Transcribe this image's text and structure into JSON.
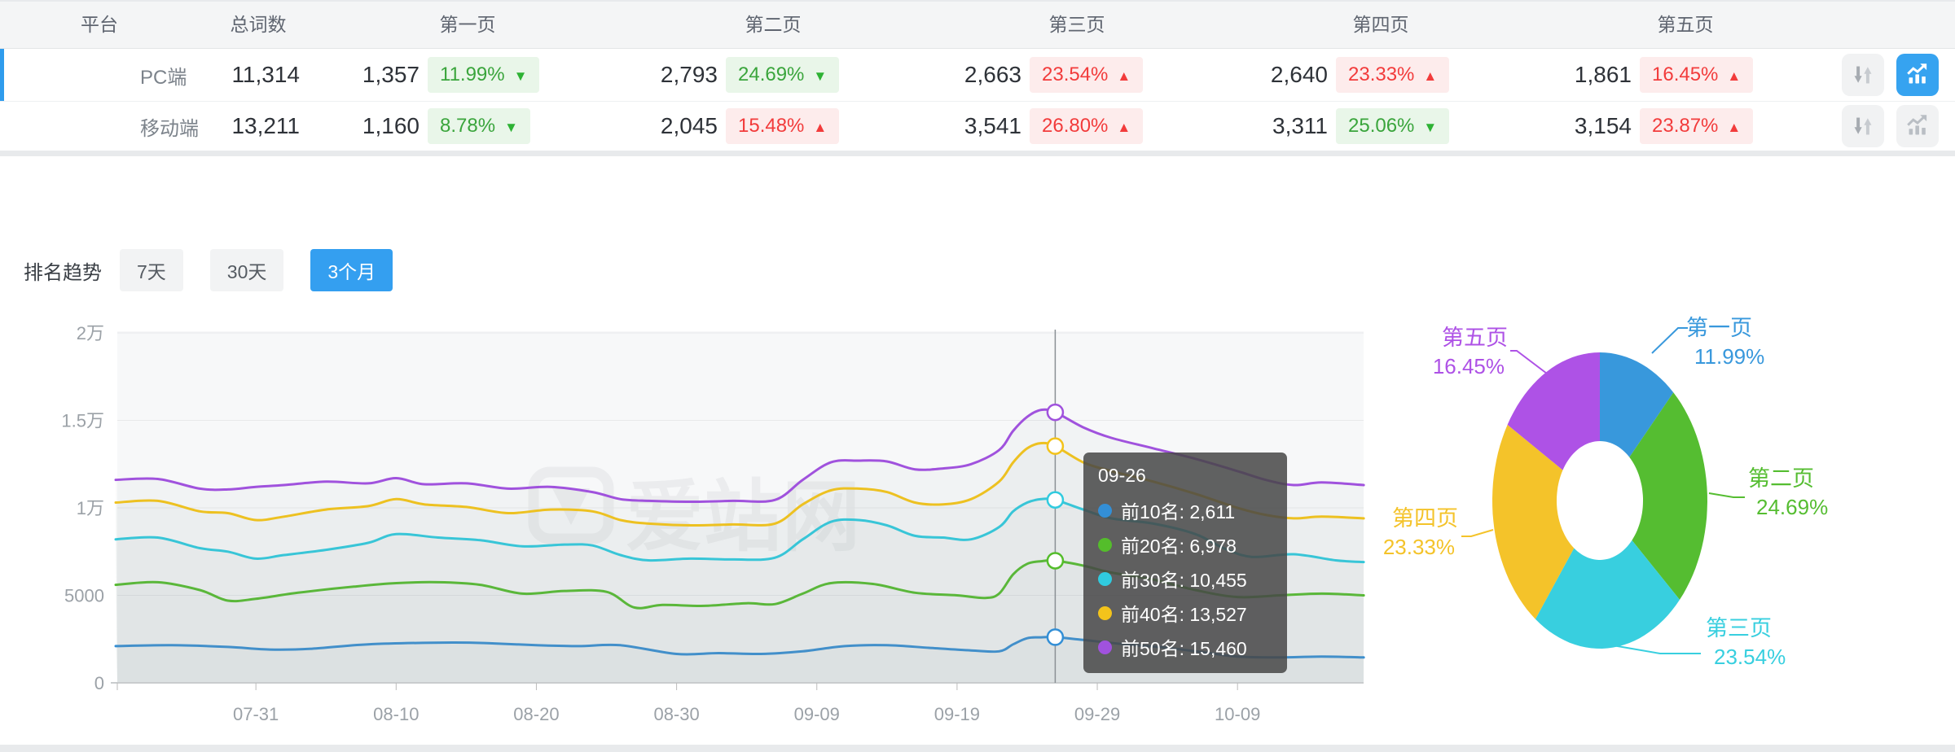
{
  "table": {
    "headers": [
      "平台",
      "总词数",
      "第一页",
      "第二页",
      "第三页",
      "第四页",
      "第五页"
    ],
    "rows": [
      {
        "platform": "PC端",
        "total": "11,314",
        "selected": true,
        "sort_active": false,
        "chart_active": true,
        "pages": [
          {
            "count": "1,357",
            "pct": "11.99%",
            "dir": "down",
            "tone": "green"
          },
          {
            "count": "2,793",
            "pct": "24.69%",
            "dir": "down",
            "tone": "green"
          },
          {
            "count": "2,663",
            "pct": "23.54%",
            "dir": "up",
            "tone": "red"
          },
          {
            "count": "2,640",
            "pct": "23.33%",
            "dir": "up",
            "tone": "red"
          },
          {
            "count": "1,861",
            "pct": "16.45%",
            "dir": "up",
            "tone": "red"
          }
        ]
      },
      {
        "platform": "移动端",
        "total": "13,211",
        "selected": false,
        "sort_active": false,
        "chart_active": false,
        "pages": [
          {
            "count": "1,160",
            "pct": "8.78%",
            "dir": "down",
            "tone": "green"
          },
          {
            "count": "2,045",
            "pct": "15.48%",
            "dir": "up",
            "tone": "red"
          },
          {
            "count": "3,541",
            "pct": "26.80%",
            "dir": "up",
            "tone": "red"
          },
          {
            "count": "3,311",
            "pct": "25.06%",
            "dir": "down",
            "tone": "green"
          },
          {
            "count": "3,154",
            "pct": "23.87%",
            "dir": "up",
            "tone": "red"
          }
        ]
      }
    ]
  },
  "trend": {
    "title": "排名趋势",
    "tabs": [
      {
        "label": "7天",
        "active": false
      },
      {
        "label": "30天",
        "active": false
      },
      {
        "label": "3个月",
        "active": true
      }
    ]
  },
  "watermark": "爱站网",
  "tooltip": {
    "title": "09-26",
    "rows": [
      {
        "name": "前10名",
        "value": "2,611",
        "color": "#338fd6"
      },
      {
        "name": "前20名",
        "value": "6,978",
        "color": "#54bd2b"
      },
      {
        "name": "前30名",
        "value": "10,455",
        "color": "#30cbdf"
      },
      {
        "name": "前40名",
        "value": "13,527",
        "color": "#f3c31b"
      },
      {
        "name": "前50名",
        "value": "15,460",
        "color": "#a052dd"
      }
    ]
  },
  "chart_data": [
    {
      "type": "line",
      "title": "排名趋势(3个月)",
      "ylim": [
        0,
        20000
      ],
      "y_ticks": [
        "0",
        "5000",
        "1万",
        "1.5万",
        "2万"
      ],
      "x_ticks": [
        "07-31",
        "08-10",
        "08-20",
        "08-30",
        "09-09",
        "09-19",
        "09-29",
        "10-09"
      ],
      "x_tick_days": [
        10,
        20,
        30,
        40,
        50,
        60,
        70,
        80
      ],
      "x_domain_days": [
        0,
        89
      ],
      "grid": true,
      "highlight": {
        "date": "09-26",
        "day": 67
      },
      "series": [
        {
          "name": "前10名",
          "color": "#338fd6",
          "points": [
            [
              0,
              2100
            ],
            [
              4,
              2150
            ],
            [
              8,
              2050
            ],
            [
              11,
              1900
            ],
            [
              14,
              1950
            ],
            [
              18,
              2200
            ],
            [
              24,
              2300
            ],
            [
              27,
              2250
            ],
            [
              30,
              2150
            ],
            [
              33,
              2100
            ],
            [
              36,
              2150
            ],
            [
              40,
              1650
            ],
            [
              43,
              1700
            ],
            [
              46,
              1650
            ],
            [
              49,
              1800
            ],
            [
              52,
              2100
            ],
            [
              55,
              2150
            ],
            [
              58,
              2000
            ],
            [
              61,
              1850
            ],
            [
              63,
              1800
            ],
            [
              64,
              2200
            ],
            [
              65,
              2550
            ],
            [
              66,
              2600
            ],
            [
              67,
              2611
            ],
            [
              69,
              2450
            ],
            [
              72,
              2200
            ],
            [
              75,
              2000
            ],
            [
              78,
              1700
            ],
            [
              80,
              1500
            ],
            [
              83,
              1450
            ],
            [
              86,
              1500
            ],
            [
              89,
              1450
            ]
          ]
        },
        {
          "name": "前20名",
          "color": "#54bd2b",
          "points": [
            [
              0,
              5600
            ],
            [
              3,
              5750
            ],
            [
              6,
              5300
            ],
            [
              8,
              4700
            ],
            [
              10,
              4800
            ],
            [
              13,
              5150
            ],
            [
              17,
              5500
            ],
            [
              20,
              5700
            ],
            [
              23,
              5750
            ],
            [
              26,
              5600
            ],
            [
              29,
              5100
            ],
            [
              32,
              5250
            ],
            [
              35,
              5200
            ],
            [
              37,
              4300
            ],
            [
              39,
              4450
            ],
            [
              42,
              4400
            ],
            [
              45,
              4550
            ],
            [
              47,
              4500
            ],
            [
              49,
              5100
            ],
            [
              51,
              5700
            ],
            [
              54,
              5650
            ],
            [
              57,
              5150
            ],
            [
              60,
              5000
            ],
            [
              62,
              4850
            ],
            [
              63,
              5100
            ],
            [
              64,
              6200
            ],
            [
              65,
              6800
            ],
            [
              66,
              6950
            ],
            [
              67,
              6978
            ],
            [
              69,
              6700
            ],
            [
              71,
              6300
            ],
            [
              74,
              5900
            ],
            [
              77,
              5300
            ],
            [
              80,
              4900
            ],
            [
              83,
              5000
            ],
            [
              86,
              5100
            ],
            [
              89,
              5000
            ]
          ]
        },
        {
          "name": "前30名",
          "color": "#30cbdf",
          "points": [
            [
              0,
              8200
            ],
            [
              3,
              8300
            ],
            [
              6,
              7700
            ],
            [
              8,
              7500
            ],
            [
              10,
              7100
            ],
            [
              12,
              7300
            ],
            [
              15,
              7600
            ],
            [
              18,
              8000
            ],
            [
              20,
              8500
            ],
            [
              23,
              8300
            ],
            [
              26,
              8150
            ],
            [
              29,
              7800
            ],
            [
              32,
              7900
            ],
            [
              34,
              7850
            ],
            [
              36,
              7300
            ],
            [
              38,
              7000
            ],
            [
              41,
              7100
            ],
            [
              44,
              7050
            ],
            [
              47,
              7150
            ],
            [
              49,
              8200
            ],
            [
              51,
              9200
            ],
            [
              53,
              9300
            ],
            [
              55,
              9000
            ],
            [
              57,
              8400
            ],
            [
              59,
              8300
            ],
            [
              61,
              8200
            ],
            [
              63,
              8900
            ],
            [
              64,
              9800
            ],
            [
              65,
              10300
            ],
            [
              66,
              10500
            ],
            [
              67,
              10455
            ],
            [
              69,
              9900
            ],
            [
              71,
              9400
            ],
            [
              74,
              9100
            ],
            [
              77,
              8500
            ],
            [
              79,
              7700
            ],
            [
              81,
              7200
            ],
            [
              84,
              7350
            ],
            [
              87,
              7000
            ],
            [
              89,
              6900
            ]
          ]
        },
        {
          "name": "前40名",
          "color": "#f3c31b",
          "points": [
            [
              0,
              10300
            ],
            [
              3,
              10400
            ],
            [
              6,
              9800
            ],
            [
              8,
              9700
            ],
            [
              10,
              9300
            ],
            [
              12,
              9500
            ],
            [
              15,
              9900
            ],
            [
              18,
              10100
            ],
            [
              20,
              10500
            ],
            [
              22,
              10200
            ],
            [
              25,
              10050
            ],
            [
              28,
              9700
            ],
            [
              31,
              9900
            ],
            [
              34,
              9800
            ],
            [
              36,
              9300
            ],
            [
              38,
              9100
            ],
            [
              41,
              9000
            ],
            [
              44,
              9050
            ],
            [
              47,
              9100
            ],
            [
              49,
              10200
            ],
            [
              51,
              11000
            ],
            [
              53,
              11100
            ],
            [
              55,
              10900
            ],
            [
              57,
              10300
            ],
            [
              59,
              10200
            ],
            [
              61,
              10500
            ],
            [
              63,
              11500
            ],
            [
              64,
              12600
            ],
            [
              65,
              13400
            ],
            [
              66,
              13700
            ],
            [
              67,
              13527
            ],
            [
              69,
              12600
            ],
            [
              71,
              12100
            ],
            [
              74,
              11500
            ],
            [
              77,
              10800
            ],
            [
              80,
              10000
            ],
            [
              82,
              9600
            ],
            [
              84,
              9400
            ],
            [
              86,
              9500
            ],
            [
              89,
              9400
            ]
          ]
        },
        {
          "name": "前50名",
          "color": "#a052dd",
          "points": [
            [
              0,
              11600
            ],
            [
              3,
              11650
            ],
            [
              6,
              11100
            ],
            [
              8,
              11050
            ],
            [
              10,
              11200
            ],
            [
              12,
              11300
            ],
            [
              15,
              11500
            ],
            [
              18,
              11400
            ],
            [
              20,
              11700
            ],
            [
              22,
              11350
            ],
            [
              25,
              11400
            ],
            [
              28,
              11100
            ],
            [
              31,
              11200
            ],
            [
              34,
              10900
            ],
            [
              36,
              10500
            ],
            [
              38,
              10400
            ],
            [
              41,
              10350
            ],
            [
              44,
              10400
            ],
            [
              47,
              10450
            ],
            [
              49,
              11600
            ],
            [
              51,
              12600
            ],
            [
              53,
              12700
            ],
            [
              55,
              12650
            ],
            [
              57,
              12200
            ],
            [
              59,
              12250
            ],
            [
              61,
              12500
            ],
            [
              63,
              13300
            ],
            [
              64,
              14400
            ],
            [
              65,
              15200
            ],
            [
              66,
              15600
            ],
            [
              67,
              15460
            ],
            [
              69,
              14600
            ],
            [
              71,
              14000
            ],
            [
              74,
              13400
            ],
            [
              77,
              12800
            ],
            [
              80,
              12100
            ],
            [
              82,
              11600
            ],
            [
              84,
              11300
            ],
            [
              86,
              11450
            ],
            [
              89,
              11300
            ]
          ]
        }
      ]
    },
    {
      "type": "pie",
      "donut": true,
      "slices": [
        {
          "label": "第一页",
          "pct": 11.99,
          "pct_label": "11.99%",
          "color": "#3898dc"
        },
        {
          "label": "第二页",
          "pct": 24.69,
          "pct_label": "24.69%",
          "color": "#55bd31"
        },
        {
          "label": "第三页",
          "pct": 23.54,
          "pct_label": "23.54%",
          "color": "#38cfdf"
        },
        {
          "label": "第四页",
          "pct": 23.33,
          "pct_label": "23.33%",
          "color": "#f4c32a"
        },
        {
          "label": "第五页",
          "pct": 16.45,
          "pct_label": "16.45%",
          "color": "#ae52e6"
        }
      ]
    }
  ],
  "colors": {
    "accent_blue": "#349ff0",
    "green_text": "#3aa53c",
    "green_bg": "#e9f6e9",
    "red_text": "#f23b3b",
    "red_bg": "#fdecec"
  }
}
